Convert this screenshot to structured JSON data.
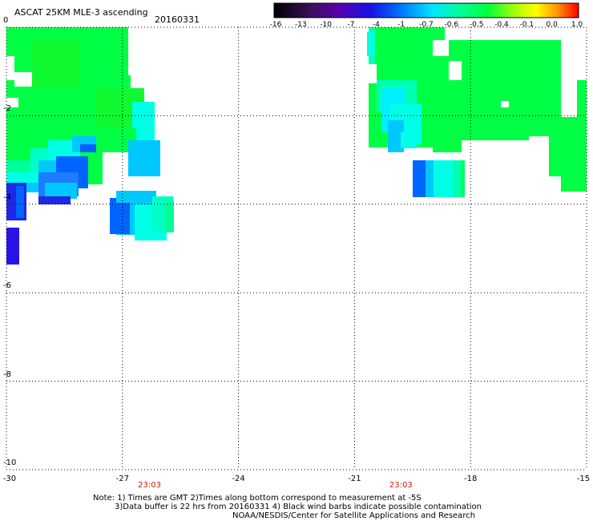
{
  "header": {
    "title": "ASCAT 25KM MLE-3 ascending",
    "date": "20160331"
  },
  "colorbar": {
    "labels": [
      "-16",
      "-13",
      "-10",
      "-7",
      "-4",
      "-1",
      "-0.7",
      "-0.6",
      "-0.5",
      "-0.4",
      "-0.1",
      "0.0",
      "1.0"
    ],
    "colors": [
      "#000000",
      "#3b0f5a",
      "#5a00b4",
      "#1414e6",
      "#0064ff",
      "#00c8ff",
      "#00ffe0",
      "#00ff9a",
      "#00ff50",
      "#7cff00",
      "#ffff00",
      "#ff8c00",
      "#ff1e00"
    ]
  },
  "axes": {
    "y_labels": [
      "0",
      "-2",
      "-4",
      "-6",
      "-8",
      "-10"
    ],
    "x_labels": [
      "-30",
      "-27",
      "-24",
      "-21",
      "-18",
      "-15"
    ],
    "lon_range": [
      -30,
      -15
    ],
    "lat_range": [
      -10,
      0
    ]
  },
  "pass_times": [
    {
      "label": "23:03",
      "lon": -26.3
    },
    {
      "label": "23:03",
      "lon": -19.8
    }
  ],
  "notes": {
    "line1": "Note: 1) Times are GMT 2)Times along bottom correspond to measurement at -5S",
    "line2": "3)Data buffer is 22 hrs from 20160331 4) Black wind barbs indicate possible contamination",
    "line3": "NOAA/NESDIS/Center for Satellite Applications and Research"
  },
  "colors": {
    "green": "#00ff44",
    "green2": "#10f830",
    "cyan": "#00ffe6",
    "lightblue": "#00c8ff",
    "blue": "#0064ff",
    "darkblue": "#1e28e6",
    "pass_time": "#c81e00"
  }
}
